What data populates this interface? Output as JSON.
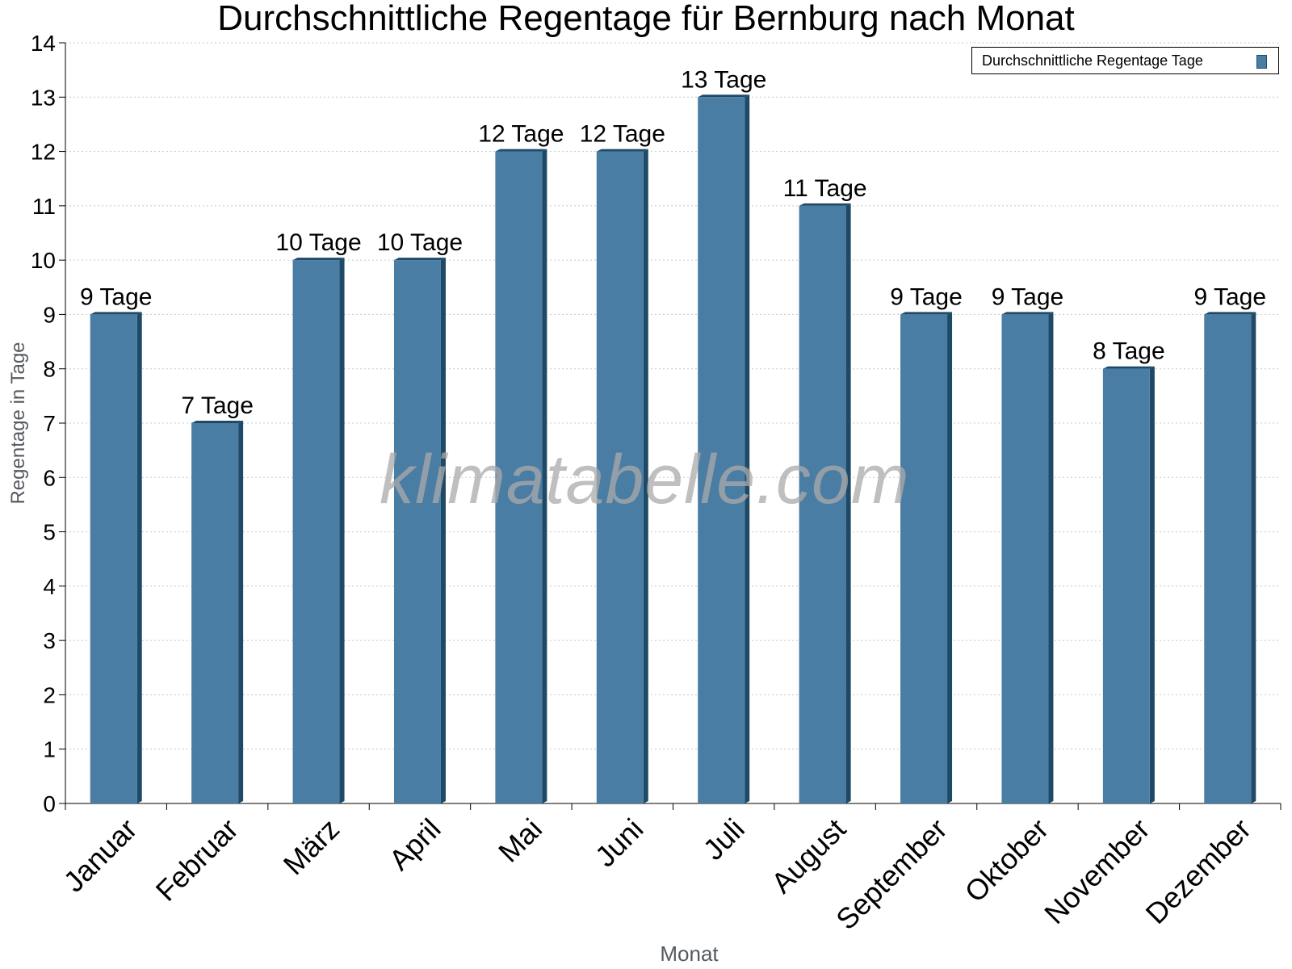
{
  "chart_data": {
    "type": "bar",
    "title": "Durchschnittliche Regentage für Bernburg nach Monat",
    "xlabel": "Monat",
    "ylabel": "Regentage in Tage",
    "ylim": [
      0,
      14
    ],
    "yticks": [
      "0",
      "1",
      "2",
      "3",
      "4",
      "5",
      "6",
      "7",
      "8",
      "9",
      "10",
      "11",
      "12",
      "13",
      "14"
    ],
    "categories": [
      "Januar",
      "Februar",
      "März",
      "April",
      "Mai",
      "Juni",
      "Juli",
      "August",
      "September",
      "Oktober",
      "November",
      "Dezember"
    ],
    "series": [
      {
        "name": "Durchschnittliche Regentage Tage",
        "values": [
          9,
          7,
          10,
          10,
          12,
          12,
          13,
          11,
          9,
          9,
          8,
          9
        ],
        "labels": [
          "9 Tage",
          "7 Tage",
          "10 Tage",
          "10 Tage",
          "12 Tage",
          "12 Tage",
          "13 Tage",
          "11 Tage",
          "9 Tage",
          "9 Tage",
          "8 Tage",
          "9 Tage"
        ],
        "color": "#4a7da3",
        "edge_color": "#1e4a68"
      }
    ],
    "grid": true,
    "legend_position": "top-right",
    "watermark": "klimatabelle.com"
  }
}
